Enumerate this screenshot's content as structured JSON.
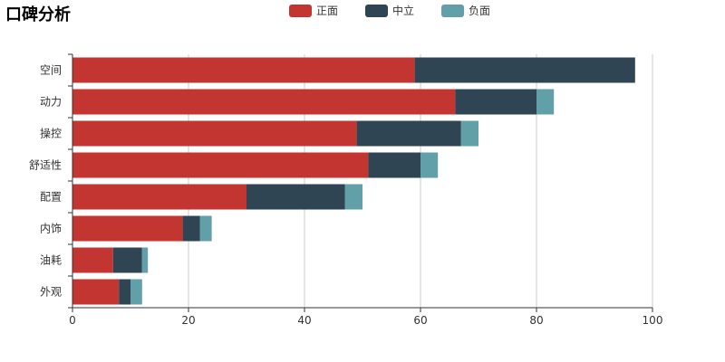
{
  "chart_data": {
    "type": "bar",
    "orientation": "horizontal",
    "stacked": true,
    "title": "口碑分析",
    "categories": [
      "空间",
      "动力",
      "操控",
      "舒适性",
      "配置",
      "内饰",
      "油耗",
      "外观"
    ],
    "series": [
      {
        "name": "正面",
        "color": "#c23531",
        "values": [
          59,
          66,
          49,
          51,
          30,
          19,
          7,
          8
        ]
      },
      {
        "name": "中立",
        "color": "#2f4554",
        "values": [
          38,
          14,
          18,
          9,
          17,
          3,
          5,
          2
        ]
      },
      {
        "name": "负面",
        "color": "#61a0a8",
        "values": [
          0,
          3,
          3,
          3,
          3,
          2,
          1,
          2
        ]
      }
    ],
    "xlim": [
      0,
      100
    ],
    "xticks": [
      0,
      20,
      40,
      60,
      80,
      100
    ],
    "legend_position": "top-center",
    "grid": true
  }
}
